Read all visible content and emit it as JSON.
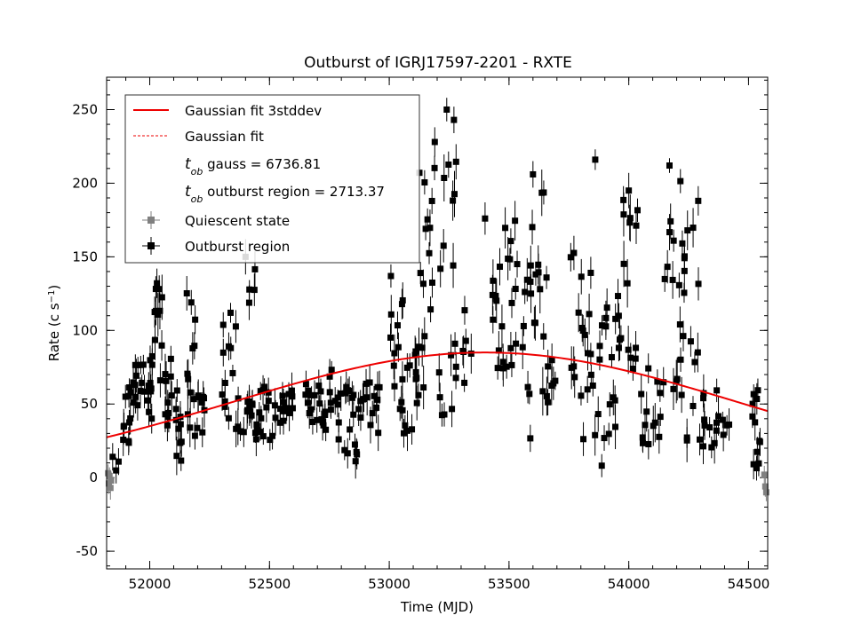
{
  "chart_data": {
    "type": "scatter",
    "title": "Outburst of IGRJ17597-2201 - RXTE",
    "xlabel": "Time (MJD)",
    "ylabel_main": "Rate (c s",
    "ylabel_sup": "−1",
    "ylabel_close": ")",
    "xlim": [
      51820,
      54580
    ],
    "ylim": [
      -62,
      272
    ],
    "xticks": [
      52000,
      52500,
      53000,
      53500,
      54000,
      54500
    ],
    "yticks": [
      -50,
      0,
      50,
      100,
      150,
      200,
      250
    ],
    "legend_position": "top-left",
    "legend": {
      "fit3": "Gaussian fit 3stddev",
      "fit": "Gaussian fit",
      "tob_gauss_sub": "ob",
      "tob_gauss_text": " gauss = 6736.81",
      "tob_region_sub": "ob",
      "tob_region_text": " outburst region = 2713.37",
      "quiescent": "Quiescent state",
      "outburst": "Outburst region"
    },
    "gaussian_fit": {
      "amplitude": 85,
      "center_mjd": 53400,
      "sigma_mjd": 1050,
      "color": "#ee0000"
    },
    "colors": {
      "outburst": "#000000",
      "quiescent": "#808080",
      "fit": "#ee0000"
    },
    "quiescent_points": [
      {
        "x": 51826,
        "y": 3,
        "e": 6
      },
      {
        "x": 51829,
        "y": -4,
        "e": 7
      },
      {
        "x": 51832,
        "y": 1,
        "e": 6
      },
      {
        "x": 51836,
        "y": -7,
        "e": 8
      },
      {
        "x": 51839,
        "y": -2,
        "e": 6
      },
      {
        "x": 54566,
        "y": 2,
        "e": 6
      },
      {
        "x": 54570,
        "y": -6,
        "e": 7
      },
      {
        "x": 54574,
        "y": -10,
        "e": 6
      }
    ],
    "outburst_series": [
      {
        "t0": 51840,
        "t1": 51870,
        "lo": 0,
        "hi": 16,
        "n": 3,
        "e": 8
      },
      {
        "t0": 51880,
        "t1": 51920,
        "lo": 14,
        "hi": 70,
        "n": 10,
        "e": 9
      },
      {
        "t0": 51920,
        "t1": 51970,
        "lo": 45,
        "hi": 90,
        "n": 12,
        "e": 9
      },
      {
        "t0": 51970,
        "t1": 52010,
        "lo": 30,
        "hi": 80,
        "n": 10,
        "e": 10
      },
      {
        "t0": 52010,
        "t1": 52060,
        "lo": 55,
        "hi": 140,
        "n": 12,
        "e": 11
      },
      {
        "t0": 52060,
        "t1": 52100,
        "lo": 35,
        "hi": 100,
        "n": 10,
        "e": 10
      },
      {
        "t0": 52100,
        "t1": 52140,
        "lo": 10,
        "hi": 60,
        "n": 10,
        "e": 10
      },
      {
        "t0": 52140,
        "t1": 52190,
        "lo": 25,
        "hi": 130,
        "n": 12,
        "e": 10
      },
      {
        "t0": 52190,
        "t1": 52230,
        "lo": 30,
        "hi": 60,
        "n": 8,
        "e": 9
      },
      {
        "t0": 52300,
        "t1": 52360,
        "lo": 35,
        "hi": 120,
        "n": 12,
        "e": 9
      },
      {
        "t0": 52360,
        "t1": 52430,
        "lo": 30,
        "hi": 60,
        "n": 14,
        "e": 9
      },
      {
        "t0": 52400,
        "t1": 52440,
        "lo": 110,
        "hi": 150,
        "n": 4,
        "e": 10
      },
      {
        "t0": 52440,
        "t1": 52520,
        "lo": 25,
        "hi": 65,
        "n": 16,
        "e": 9
      },
      {
        "t0": 52520,
        "t1": 52600,
        "lo": 35,
        "hi": 60,
        "n": 14,
        "e": 9
      },
      {
        "t0": 52650,
        "t1": 52730,
        "lo": 30,
        "hi": 65,
        "n": 16,
        "e": 9
      },
      {
        "t0": 52730,
        "t1": 52800,
        "lo": 25,
        "hi": 80,
        "n": 14,
        "e": 9
      },
      {
        "t0": 52800,
        "t1": 52880,
        "lo": 10,
        "hi": 65,
        "n": 16,
        "e": 9
      },
      {
        "t0": 52880,
        "t1": 52960,
        "lo": 30,
        "hi": 65,
        "n": 14,
        "e": 9
      },
      {
        "t0": 53000,
        "t1": 53060,
        "lo": 40,
        "hi": 145,
        "n": 14,
        "e": 10
      },
      {
        "t0": 53060,
        "t1": 53130,
        "lo": 30,
        "hi": 100,
        "n": 14,
        "e": 10
      },
      {
        "t0": 53120,
        "t1": 53220,
        "lo": 40,
        "hi": 230,
        "n": 18,
        "e": 12
      },
      {
        "t0": 53220,
        "t1": 53300,
        "lo": 40,
        "hi": 245,
        "n": 14,
        "e": 12
      },
      {
        "t0": 53300,
        "t1": 53350,
        "lo": 60,
        "hi": 120,
        "n": 6,
        "e": 10
      },
      {
        "t0": 53430,
        "t1": 53500,
        "lo": 50,
        "hi": 175,
        "n": 14,
        "e": 11
      },
      {
        "t0": 53500,
        "t1": 53600,
        "lo": 55,
        "hi": 175,
        "n": 18,
        "e": 11
      },
      {
        "t0": 53580,
        "t1": 53660,
        "lo": 20,
        "hi": 205,
        "n": 14,
        "e": 12
      },
      {
        "t0": 53660,
        "t1": 53700,
        "lo": 40,
        "hi": 95,
        "n": 6,
        "e": 10
      },
      {
        "t0": 53750,
        "t1": 53850,
        "lo": 25,
        "hi": 160,
        "n": 18,
        "e": 11
      },
      {
        "t0": 53850,
        "t1": 53950,
        "lo": 0,
        "hi": 120,
        "n": 18,
        "e": 11
      },
      {
        "t0": 53950,
        "t1": 54050,
        "lo": 15,
        "hi": 195,
        "n": 18,
        "e": 12
      },
      {
        "t0": 54050,
        "t1": 54150,
        "lo": 20,
        "hi": 80,
        "n": 14,
        "e": 10
      },
      {
        "t0": 54150,
        "t1": 54230,
        "lo": 55,
        "hi": 210,
        "n": 16,
        "e": 11
      },
      {
        "t0": 54230,
        "t1": 54300,
        "lo": 20,
        "hi": 185,
        "n": 14,
        "e": 11
      },
      {
        "t0": 54300,
        "t1": 54380,
        "lo": 20,
        "hi": 60,
        "n": 12,
        "e": 10
      },
      {
        "t0": 54380,
        "t1": 54420,
        "lo": 25,
        "hi": 40,
        "n": 4,
        "e": 8
      },
      {
        "t0": 54510,
        "t1": 54570,
        "lo": 0,
        "hi": 60,
        "n": 12,
        "e": 9
      }
    ],
    "outburst_highlights": [
      {
        "x": 53240,
        "y": 250,
        "e": 8
      },
      {
        "x": 53270,
        "y": 243,
        "e": 9
      },
      {
        "x": 53190,
        "y": 228,
        "e": 10
      },
      {
        "x": 53860,
        "y": 216,
        "e": 7
      },
      {
        "x": 54170,
        "y": 212,
        "e": 5
      },
      {
        "x": 53600,
        "y": 206,
        "e": 9
      },
      {
        "x": 54000,
        "y": 195,
        "e": 12
      },
      {
        "x": 54290,
        "y": 188,
        "e": 10
      },
      {
        "x": 52030,
        "y": 132,
        "e": 10
      },
      {
        "x": 52400,
        "y": 150,
        "e": 12
      },
      {
        "x": 53400,
        "y": 176,
        "e": 11
      }
    ]
  }
}
